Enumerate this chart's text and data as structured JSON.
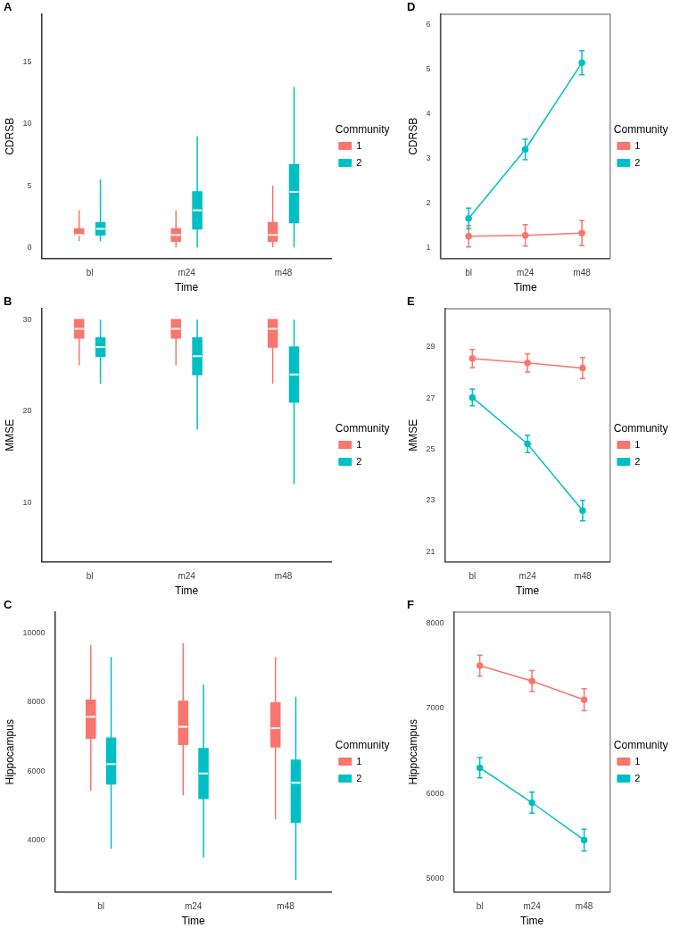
{
  "chart_data": [
    {
      "type": "box",
      "ylabel": "CDRSB",
      "xlabel": "Time",
      "legend_title": "Community",
      "legend": "right",
      "annotations": [
        "A"
      ],
      "categories": [
        "bl",
        "m24",
        "m48"
      ],
      "ylim": [
        -0.9,
        18.9
      ],
      "yticks": [
        0,
        5,
        10,
        15
      ],
      "series": [
        {
          "name": "1",
          "color": "#f8766d",
          "boxes": [
            {
              "low": 0.5,
              "q1": 1,
              "median": 1,
              "q3": 1.5,
              "high": 3
            },
            {
              "low": 0,
              "q1": 0.5,
              "median": 1,
              "q3": 1.5,
              "high": 3
            },
            {
              "low": 0,
              "q1": 0.5,
              "median": 1,
              "q3": 2,
              "high": 5
            }
          ]
        },
        {
          "name": "2",
          "color": "#00bfc4",
          "boxes": [
            {
              "low": 0.5,
              "q1": 1,
              "median": 1.5,
              "q3": 2,
              "high": 5.5
            },
            {
              "low": 0,
              "q1": 1.5,
              "median": 3,
              "q3": 4.5,
              "high": 9
            },
            {
              "low": 0,
              "q1": 2,
              "median": 4.5,
              "q3": 6.7,
              "high": 13
            }
          ]
        }
      ]
    },
    {
      "type": "box",
      "ylabel": "MMSE",
      "xlabel": "Time",
      "legend_title": "Community",
      "legend": "right",
      "annotations": [
        "B"
      ],
      "categories": [
        "bl",
        "m24",
        "m48"
      ],
      "ylim": [
        3.5,
        31.2
      ],
      "yticks": [
        10,
        20,
        30
      ],
      "series": [
        {
          "name": "1",
          "color": "#f8766d",
          "boxes": [
            {
              "low": 25,
              "q1": 28,
              "median": 29,
              "q3": 30,
              "high": 30
            },
            {
              "low": 25,
              "q1": 28,
              "median": 29,
              "q3": 30,
              "high": 30
            },
            {
              "low": 23,
              "q1": 27,
              "median": 29,
              "q3": 30,
              "high": 30
            }
          ]
        },
        {
          "name": "2",
          "color": "#00bfc4",
          "boxes": [
            {
              "low": 23,
              "q1": 26,
              "median": 27,
              "q3": 28,
              "high": 30
            },
            {
              "low": 18,
              "q1": 24,
              "median": 26,
              "q3": 28,
              "high": 30
            },
            {
              "low": 12,
              "q1": 21,
              "median": 24,
              "q3": 27,
              "high": 30
            }
          ]
        }
      ]
    },
    {
      "type": "box",
      "ylabel": "Hippocampus",
      "xlabel": "Time",
      "legend_title": "Community",
      "legend": "right",
      "annotations": [
        "C"
      ],
      "categories": [
        "bl",
        "m24",
        "m48"
      ],
      "ylim": [
        2500,
        10600
      ],
      "yticks": [
        4000,
        6000,
        8000,
        10000
      ],
      "series": [
        {
          "name": "1",
          "color": "#f8766d",
          "boxes": [
            {
              "low": 5430,
              "q1": 6950,
              "median": 7570,
              "q3": 8050,
              "high": 9650
            },
            {
              "low": 5300,
              "q1": 6770,
              "median": 7280,
              "q3": 8020,
              "high": 9700
            },
            {
              "low": 4600,
              "q1": 6700,
              "median": 7240,
              "q3": 7970,
              "high": 9300
            }
          ]
        },
        {
          "name": "2",
          "color": "#00bfc4",
          "boxes": [
            {
              "low": 3750,
              "q1": 5630,
              "median": 6200,
              "q3": 6950,
              "high": 9300
            },
            {
              "low": 3500,
              "q1": 5210,
              "median": 5930,
              "q3": 6650,
              "high": 8500
            },
            {
              "low": 2850,
              "q1": 4520,
              "median": 5660,
              "q3": 6310,
              "high": 8150
            }
          ]
        }
      ]
    },
    {
      "type": "line",
      "ylabel": "CDRSB",
      "xlabel": "Time",
      "legend_title": "Community",
      "legend": "right",
      "marker": "circle",
      "annotations": [
        "D"
      ],
      "categories": [
        "bl",
        "m24",
        "m48"
      ],
      "ylim": [
        0.75,
        6.24
      ],
      "yticks": [
        1,
        2,
        3,
        4,
        5,
        6
      ],
      "series": [
        {
          "name": "1",
          "color": "#f8766d",
          "values": [
            1.25,
            1.27,
            1.32
          ],
          "errors": [
            0.24,
            0.24,
            0.28
          ]
        },
        {
          "name": "2",
          "color": "#00bfc4",
          "values": [
            1.65,
            3.2,
            5.15
          ],
          "errors": [
            0.23,
            0.23,
            0.27
          ]
        }
      ]
    },
    {
      "type": "line",
      "ylabel": "MMSE",
      "xlabel": "Time",
      "legend_title": "Community",
      "legend": "right",
      "marker": "circle",
      "annotations": [
        "E"
      ],
      "categories": [
        "bl",
        "m24",
        "m48"
      ],
      "ylim": [
        20.6,
        30.5
      ],
      "yticks": [
        21,
        23,
        25,
        27,
        29
      ],
      "series": [
        {
          "name": "1",
          "color": "#f8766d",
          "values": [
            28.55,
            28.38,
            28.18
          ],
          "errors": [
            0.35,
            0.36,
            0.41
          ]
        },
        {
          "name": "2",
          "color": "#00bfc4",
          "values": [
            27.03,
            25.21,
            22.6
          ],
          "errors": [
            0.33,
            0.34,
            0.4
          ]
        }
      ]
    },
    {
      "type": "line",
      "ylabel": "Hippocampus",
      "xlabel": "Time",
      "legend_title": "Community",
      "legend": "right",
      "marker": "circle",
      "annotations": [
        "F"
      ],
      "categories": [
        "bl",
        "m24",
        "m48"
      ],
      "ylim": [
        4840,
        8130
      ],
      "yticks": [
        5000,
        6000,
        7000,
        8000
      ],
      "series": [
        {
          "name": "1",
          "color": "#f8766d",
          "values": [
            7500,
            7320,
            7100
          ],
          "errors": [
            123,
            123,
            130
          ]
        },
        {
          "name": "2",
          "color": "#00bfc4",
          "values": [
            6300,
            5890,
            5450
          ],
          "errors": [
            120,
            123,
            129
          ]
        }
      ]
    }
  ]
}
